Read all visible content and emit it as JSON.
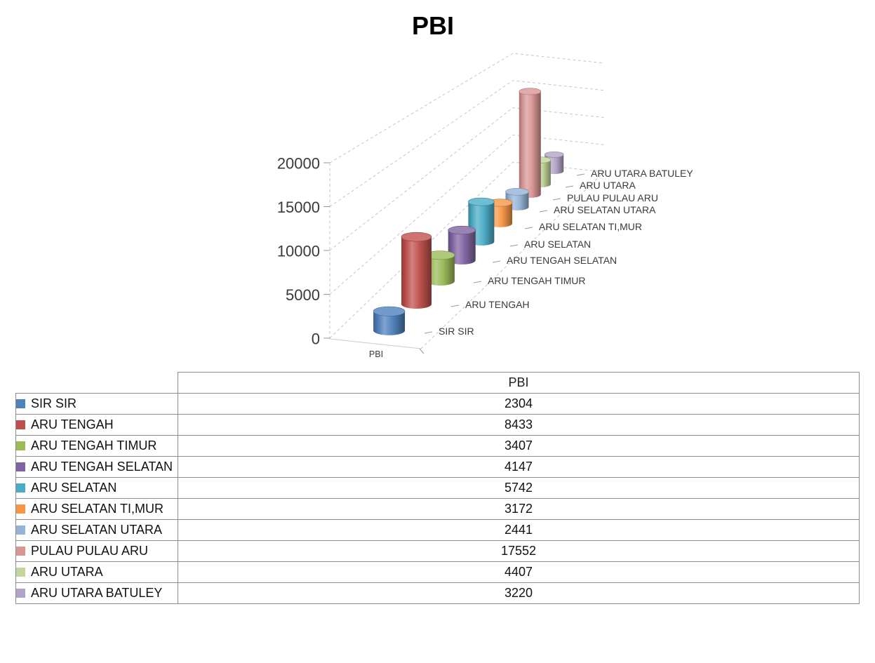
{
  "title": "PBI",
  "chart_data": {
    "type": "bar",
    "subtype": "3d-cylinder",
    "title": "PBI",
    "series_name": "PBI",
    "categories": [
      "SIR SIR",
      "ARU TENGAH",
      "ARU TENGAH TIMUR",
      "ARU TENGAH SELATAN",
      "ARU SELATAN",
      "ARU SELATAN TI,MUR",
      "ARU SELATAN UTARA",
      "PULAU PULAU ARU",
      "ARU UTARA",
      "ARU UTARA BATULEY"
    ],
    "values": [
      2304,
      8433,
      3407,
      4147,
      5742,
      3172,
      2441,
      17552,
      4407,
      3220
    ],
    "colors": [
      "#4F81BD",
      "#C0504D",
      "#9BBB59",
      "#8064A2",
      "#4BACC6",
      "#F79646",
      "#95B3D7",
      "#D99694",
      "#C3D69B",
      "#B3A2C7"
    ],
    "ylim": [
      0,
      20000
    ],
    "yticks": [
      0,
      5000,
      10000,
      15000,
      20000
    ],
    "grid": "dashed",
    "legend_position": "data-table-below",
    "grid_color": "#c6c6c6",
    "axis_text_color": "#3a3a3a"
  },
  "table": {
    "header": "PBI",
    "rows": [
      {
        "label": "SIR SIR",
        "value": "2304",
        "color": "#4F81BD"
      },
      {
        "label": "ARU TENGAH",
        "value": "8433",
        "color": "#C0504D"
      },
      {
        "label": "ARU TENGAH TIMUR",
        "value": "3407",
        "color": "#9BBB59"
      },
      {
        "label": "ARU TENGAH SELATAN",
        "value": "4147",
        "color": "#8064A2"
      },
      {
        "label": "ARU SELATAN",
        "value": "5742",
        "color": "#4BACC6"
      },
      {
        "label": "ARU SELATAN TI,MUR",
        "value": "3172",
        "color": "#F79646"
      },
      {
        "label": "ARU SELATAN UTARA",
        "value": "2441",
        "color": "#95B3D7"
      },
      {
        "label": "PULAU PULAU ARU",
        "value": "17552",
        "color": "#D99694"
      },
      {
        "label": "ARU UTARA",
        "value": "4407",
        "color": "#C3D69B"
      },
      {
        "label": "ARU UTARA BATULEY",
        "value": "3220",
        "color": "#B3A2C7"
      }
    ]
  }
}
